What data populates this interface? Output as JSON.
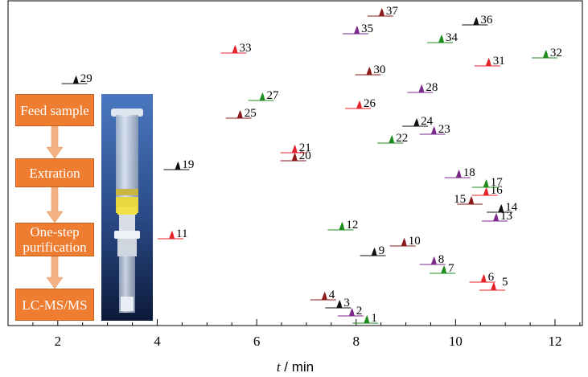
{
  "chart_data": {
    "type": "scatter",
    "xlabel": "t / min",
    "ylabel": "",
    "xlim": [
      1.0,
      12.55
    ],
    "x_ticks": [
      2,
      4,
      6,
      8,
      10,
      12
    ],
    "grid": false,
    "marker": "chromatographic peak",
    "points": [
      {
        "label": "1",
        "x": 8.22,
        "color": "#1f8c1f"
      },
      {
        "label": "2",
        "x": 7.92,
        "color": "#7b2a8c"
      },
      {
        "label": "3",
        "x": 7.67,
        "color": "#111111"
      },
      {
        "label": "4",
        "x": 7.37,
        "color": "#8b1a1a"
      },
      {
        "label": "5",
        "x": 10.77,
        "color": "#e8222a"
      },
      {
        "label": "6",
        "x": 10.57,
        "color": "#e8222a"
      },
      {
        "label": "7",
        "x": 9.77,
        "color": "#1f8c1f"
      },
      {
        "label": "8",
        "x": 9.57,
        "color": "#7b2a8c"
      },
      {
        "label": "9",
        "x": 8.37,
        "color": "#111111"
      },
      {
        "label": "10",
        "x": 8.97,
        "color": "#8b1a1a"
      },
      {
        "label": "11",
        "x": 4.3,
        "color": "#e8222a"
      },
      {
        "label": "12",
        "x": 7.72,
        "color": "#1f8c1f"
      },
      {
        "label": "13",
        "x": 10.82,
        "color": "#7b2a8c"
      },
      {
        "label": "14",
        "x": 10.92,
        "color": "#111111"
      },
      {
        "label": "15",
        "x": 10.32,
        "color": "#8b1a1a"
      },
      {
        "label": "16",
        "x": 10.62,
        "color": "#e8222a"
      },
      {
        "label": "17",
        "x": 10.62,
        "color": "#1f8c1f"
      },
      {
        "label": "18",
        "x": 10.07,
        "color": "#7b2a8c"
      },
      {
        "label": "19",
        "x": 4.42,
        "color": "#111111"
      },
      {
        "label": "20",
        "x": 6.77,
        "color": "#8b1a1a"
      },
      {
        "label": "21",
        "x": 6.77,
        "color": "#e8222a"
      },
      {
        "label": "22",
        "x": 8.72,
        "color": "#1f8c1f"
      },
      {
        "label": "23",
        "x": 9.57,
        "color": "#7b2a8c"
      },
      {
        "label": "24",
        "x": 9.22,
        "color": "#111111"
      },
      {
        "label": "25",
        "x": 5.67,
        "color": "#8b1a1a"
      },
      {
        "label": "26",
        "x": 8.07,
        "color": "#e8222a"
      },
      {
        "label": "27",
        "x": 6.12,
        "color": "#1f8c1f"
      },
      {
        "label": "28",
        "x": 9.32,
        "color": "#7b2a8c"
      },
      {
        "label": "29",
        "x": 2.37,
        "color": "#111111"
      },
      {
        "label": "30",
        "x": 8.27,
        "color": "#8b1a1a"
      },
      {
        "label": "31",
        "x": 10.67,
        "color": "#e8222a"
      },
      {
        "label": "32",
        "x": 11.82,
        "color": "#1f8c1f"
      },
      {
        "label": "33",
        "x": 5.57,
        "color": "#e8222a"
      },
      {
        "label": "34",
        "x": 9.72,
        "color": "#1f8c1f"
      },
      {
        "label": "35",
        "x": 8.02,
        "color": "#7b2a8c"
      },
      {
        "label": "36",
        "x": 10.42,
        "color": "#111111"
      },
      {
        "label": "37",
        "x": 8.52,
        "color": "#8b1a1a"
      }
    ]
  },
  "workflow": {
    "steps": [
      "Feed sample",
      "Extration",
      "One-step purification",
      "LC-MS/MS"
    ],
    "box_color": "#ee7d31",
    "arrow_color": "#f4b183"
  },
  "colors": {
    "red": "#e8222a",
    "darkred": "#8b1a1a",
    "green": "#1f8c1f",
    "purple": "#7b2a8c",
    "black": "#111111"
  },
  "icons": [
    "cartridge-photo"
  ]
}
